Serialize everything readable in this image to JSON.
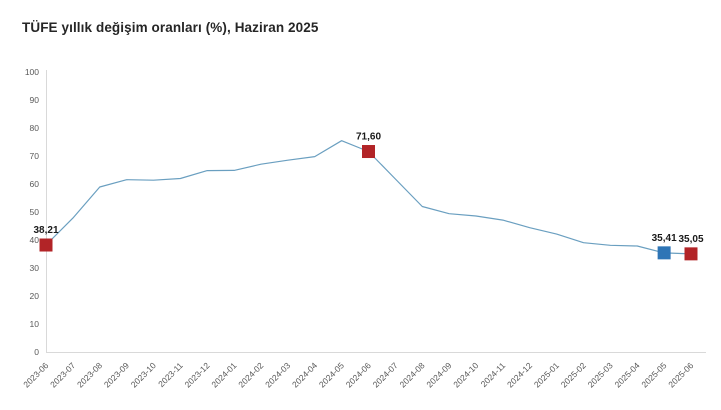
{
  "header": {
    "title": "TÜFE yıllık değişim oranları (%), Haziran 2025"
  },
  "chart_data": {
    "type": "line",
    "title": "TÜFE yıllık değişim oranları (%), Haziran 2025",
    "xlabel": "",
    "ylabel": "",
    "ylim": [
      0,
      100
    ],
    "ytick_step": 10,
    "grid": false,
    "legend": "none",
    "line_color": "#6a9fc0",
    "axis_color": "#d9d9d9",
    "categories": [
      "2023-06",
      "2023-07",
      "2023-08",
      "2023-09",
      "2023-10",
      "2023-11",
      "2023-12",
      "2024-01",
      "2024-02",
      "2024-03",
      "2024-04",
      "2024-05",
      "2024-06",
      "2024-07",
      "2024-08",
      "2024-09",
      "2024-10",
      "2024-11",
      "2024-12",
      "2025-01",
      "2025-02",
      "2025-03",
      "2025-04",
      "2025-05",
      "2025-06"
    ],
    "values": [
      38.21,
      47.83,
      58.94,
      61.53,
      61.36,
      61.98,
      64.77,
      64.86,
      67.07,
      68.5,
      69.8,
      75.45,
      71.6,
      61.78,
      51.97,
      49.38,
      48.58,
      47.09,
      44.38,
      42.12,
      39.05,
      38.1,
      37.86,
      35.41,
      35.05
    ],
    "markers": [
      {
        "x": "2023-06",
        "value": 38.21,
        "label": "38,21",
        "color": "#b22427"
      },
      {
        "x": "2024-06",
        "value": 71.6,
        "label": "71,60",
        "color": "#b22427"
      },
      {
        "x": "2025-05",
        "value": 35.41,
        "label": "35,41",
        "color": "#2e75b6"
      },
      {
        "x": "2025-06",
        "value": 35.05,
        "label": "35,05",
        "color": "#b22427"
      }
    ]
  }
}
